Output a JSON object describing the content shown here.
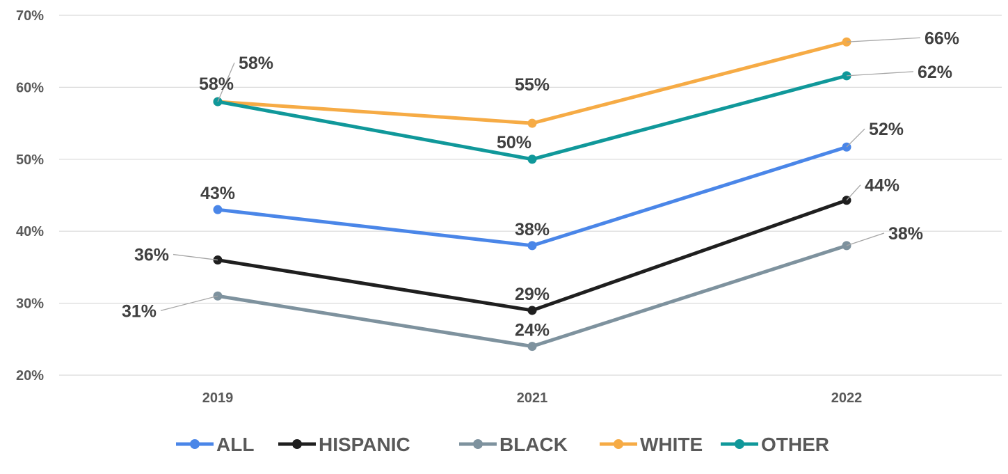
{
  "chart_data": {
    "type": "line",
    "title": "",
    "xlabel": "",
    "ylabel": "",
    "x": [
      "2019",
      "2021",
      "2022"
    ],
    "ylim": [
      20,
      70
    ],
    "yticks": [
      "20%",
      "30%",
      "40%",
      "50%",
      "60%",
      "70%"
    ],
    "grid": true,
    "legend_position": "bottom",
    "series": [
      {
        "name": "ALL",
        "color": "#4a86e8",
        "values": [
          43,
          38,
          51.7
        ],
        "labels": [
          "43%",
          "38%",
          "52%"
        ]
      },
      {
        "name": "HISPANIC",
        "color": "#1f1f1f",
        "values": [
          36,
          29,
          44.3
        ],
        "labels": [
          "36%",
          "29%",
          "44%"
        ]
      },
      {
        "name": "BLACK",
        "color": "#7e929e",
        "values": [
          31,
          24,
          38
        ],
        "labels": [
          "31%",
          "24%",
          "38%"
        ]
      },
      {
        "name": "WHITE",
        "color": "#f6ab45",
        "values": [
          58,
          55,
          66.3
        ],
        "labels": [
          "58%",
          "55%",
          "66%"
        ]
      },
      {
        "name": "OTHER",
        "color": "#10989a",
        "values": [
          58,
          50,
          61.6
        ],
        "labels": [
          "58%",
          "50%",
          "62%"
        ]
      }
    ]
  }
}
